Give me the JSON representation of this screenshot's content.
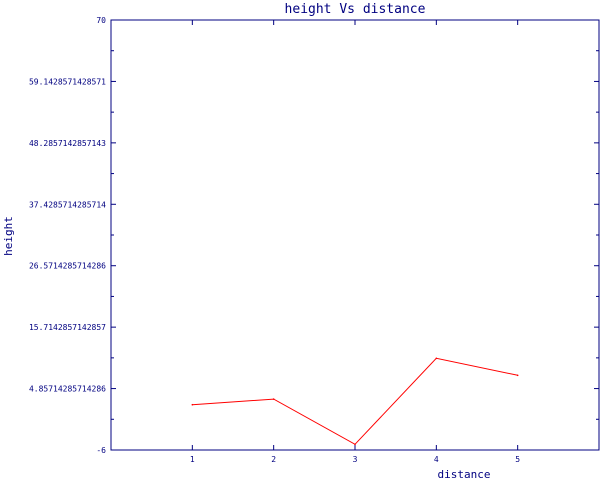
{
  "chart_data": {
    "type": "line",
    "title": "height Vs distance",
    "xlabel": "distance",
    "ylabel": "height",
    "x": [
      1,
      2,
      3,
      4,
      5
    ],
    "xticks": [
      "1",
      "2",
      "3",
      "4",
      "5"
    ],
    "xlim": [
      0,
      6
    ],
    "ylim": [
      -6,
      70
    ],
    "yticks": [
      "-6",
      "4.85714285714286",
      "15.7142857142857",
      "26.5714285714286",
      "37.4285714285714",
      "48.2857142857143",
      "59.1428571428571",
      "70"
    ],
    "ytick_values": [
      -6,
      4.85714285714286,
      15.7142857142857,
      26.5714285714286,
      37.4285714285714,
      48.2857142857143,
      59.1428571428571,
      70
    ],
    "series": [
      {
        "values": [
          2.0,
          3.0,
          -5.0,
          10.2,
          7.2
        ],
        "color": "#ff0000"
      }
    ],
    "grid": false,
    "axis_color": "#000080"
  }
}
